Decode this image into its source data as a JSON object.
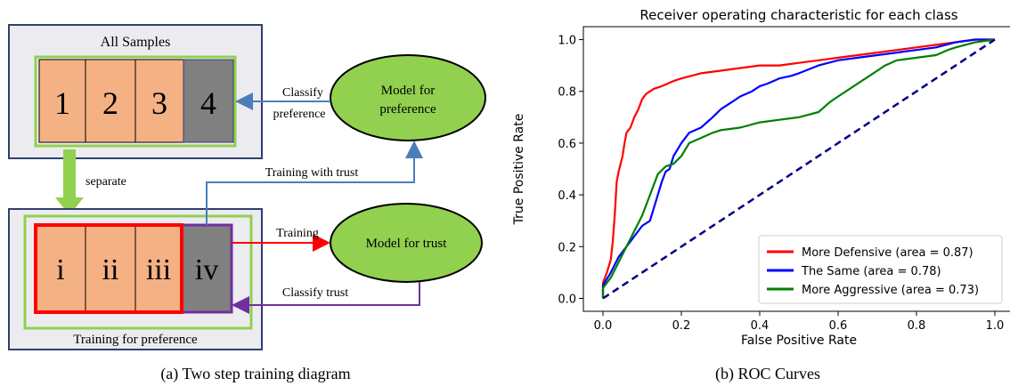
{
  "diagram": {
    "all_samples_label": "All Samples",
    "sample_blocks": [
      "1",
      "2",
      "3",
      "4"
    ],
    "classify_preference_label_line1": "Classify",
    "classify_preference_label_line2": "preference",
    "model_preference_line1": "Model for",
    "model_preference_line2": "preference",
    "separate_label": "separate",
    "training_with_trust_label": "Training with trust",
    "training_label": "Training",
    "model_trust_label": "Model for trust",
    "trust_blocks": [
      "i",
      "ii",
      "iii",
      "iv"
    ],
    "classify_trust_label": "Classify trust",
    "training_for_preference_label": "Training for preference",
    "caption": "(a)  Two step training diagram",
    "colors": {
      "block_fill": "#f4b183",
      "block_gray": "#808080",
      "panel_bg": "#ececf0",
      "panel_border": "#2f3f6f",
      "green_border": "#92d050",
      "red_border": "#ff0000",
      "purple_border": "#7030a0",
      "ellipse_fill": "#92d050",
      "blue_arrow": "#4a7ebb",
      "green_arrow": "#92d050"
    }
  },
  "chart_data": {
    "type": "line",
    "title": "Receiver operating characteristic for each class",
    "xlabel": "False Positive Rate",
    "ylabel": "True Positive Rate",
    "xlim": [
      -0.05,
      1.05
    ],
    "ylim": [
      -0.05,
      1.05
    ],
    "xticks": [
      "0.0",
      "0.2",
      "0.4",
      "0.6",
      "0.8",
      "1.0"
    ],
    "yticks": [
      "0.0",
      "0.2",
      "0.4",
      "0.6",
      "0.8",
      "1.0"
    ],
    "grid": false,
    "legend_position": "lower-right",
    "series": [
      {
        "name": "More Defensive (area = 0.87)",
        "color": "#ff0000",
        "x": [
          0,
          0,
          0.01,
          0.02,
          0.025,
          0.03,
          0.035,
          0.04,
          0.05,
          0.055,
          0.06,
          0.07,
          0.08,
          0.09,
          0.1,
          0.11,
          0.12,
          0.13,
          0.15,
          0.18,
          0.2,
          0.25,
          0.3,
          0.35,
          0.4,
          0.45,
          0.5,
          0.55,
          0.6,
          0.65,
          0.7,
          0.75,
          0.8,
          0.85,
          0.9,
          0.95,
          1.0
        ],
        "y": [
          0,
          0.06,
          0.1,
          0.15,
          0.22,
          0.32,
          0.45,
          0.49,
          0.55,
          0.6,
          0.64,
          0.66,
          0.7,
          0.73,
          0.77,
          0.79,
          0.8,
          0.81,
          0.82,
          0.84,
          0.85,
          0.87,
          0.88,
          0.89,
          0.9,
          0.9,
          0.91,
          0.92,
          0.93,
          0.94,
          0.95,
          0.96,
          0.97,
          0.98,
          0.99,
          1.0,
          1.0
        ]
      },
      {
        "name": "The Same (area = 0.78)",
        "color": "#0000ff",
        "x": [
          0,
          0,
          0.02,
          0.04,
          0.06,
          0.08,
          0.1,
          0.12,
          0.13,
          0.14,
          0.15,
          0.16,
          0.17,
          0.18,
          0.2,
          0.22,
          0.25,
          0.28,
          0.3,
          0.33,
          0.35,
          0.38,
          0.4,
          0.42,
          0.45,
          0.48,
          0.5,
          0.55,
          0.6,
          0.65,
          0.7,
          0.75,
          0.8,
          0.85,
          0.9,
          0.95,
          1.0
        ],
        "y": [
          0,
          0.05,
          0.1,
          0.16,
          0.2,
          0.24,
          0.28,
          0.3,
          0.35,
          0.4,
          0.45,
          0.49,
          0.5,
          0.55,
          0.6,
          0.64,
          0.66,
          0.7,
          0.73,
          0.76,
          0.78,
          0.8,
          0.82,
          0.83,
          0.85,
          0.86,
          0.87,
          0.9,
          0.92,
          0.93,
          0.94,
          0.95,
          0.96,
          0.97,
          0.99,
          1.0,
          1.0
        ]
      },
      {
        "name": "More Aggressive (area = 0.73)",
        "color": "#008000",
        "x": [
          0,
          0,
          0.02,
          0.04,
          0.06,
          0.08,
          0.1,
          0.12,
          0.14,
          0.16,
          0.18,
          0.2,
          0.22,
          0.25,
          0.28,
          0.3,
          0.35,
          0.4,
          0.45,
          0.5,
          0.55,
          0.58,
          0.6,
          0.63,
          0.66,
          0.68,
          0.7,
          0.72,
          0.75,
          0.8,
          0.85,
          0.88,
          0.9,
          0.95,
          1.0
        ],
        "y": [
          0,
          0.04,
          0.08,
          0.14,
          0.2,
          0.26,
          0.32,
          0.4,
          0.48,
          0.51,
          0.52,
          0.55,
          0.6,
          0.62,
          0.64,
          0.65,
          0.66,
          0.68,
          0.69,
          0.7,
          0.72,
          0.76,
          0.78,
          0.81,
          0.84,
          0.86,
          0.88,
          0.9,
          0.92,
          0.93,
          0.94,
          0.96,
          0.97,
          0.99,
          1.0
        ]
      },
      {
        "name": "",
        "color": "#000080",
        "dashed": true,
        "x": [
          0,
          1
        ],
        "y": [
          0,
          1
        ]
      }
    ],
    "caption": "(b)  ROC Curves"
  }
}
